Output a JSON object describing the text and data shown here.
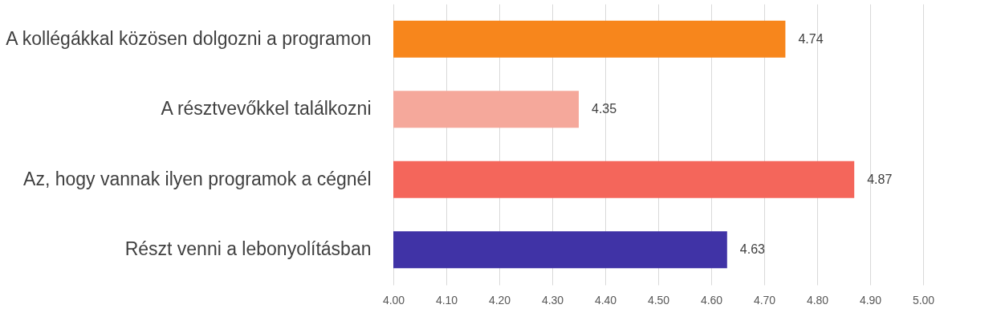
{
  "chart_data": {
    "type": "bar",
    "orientation": "horizontal",
    "categories": [
      "A kollégákkal közösen dolgozni a programon",
      "A résztvevőkkel találkozni",
      "Az, hogy vannak ilyen programok a cégnél",
      "Részt venni a lebonyolításban"
    ],
    "values": [
      4.74,
      4.35,
      4.87,
      4.63
    ],
    "colors": [
      "#f7861c",
      "#f5a89b",
      "#f4665b",
      "#4033a6"
    ],
    "xlim": [
      4,
      5
    ],
    "xticks": [
      {
        "value": 4,
        "label": "4.00"
      },
      {
        "value": 4.1,
        "label": "4.10"
      },
      {
        "value": 4.2,
        "label": "4.20"
      },
      {
        "value": 4.3,
        "label": "4.30"
      },
      {
        "value": 4.4,
        "label": "4.40"
      },
      {
        "value": 4.5,
        "label": "4.50"
      },
      {
        "value": 4.6,
        "label": "4.60"
      },
      {
        "value": 4.7,
        "label": "4.70"
      },
      {
        "value": 4.8,
        "label": "4.80"
      },
      {
        "value": 4.9,
        "label": "4.90"
      },
      {
        "value": 5,
        "label": "5.00"
      }
    ],
    "grid": "x",
    "data_labels": true
  }
}
